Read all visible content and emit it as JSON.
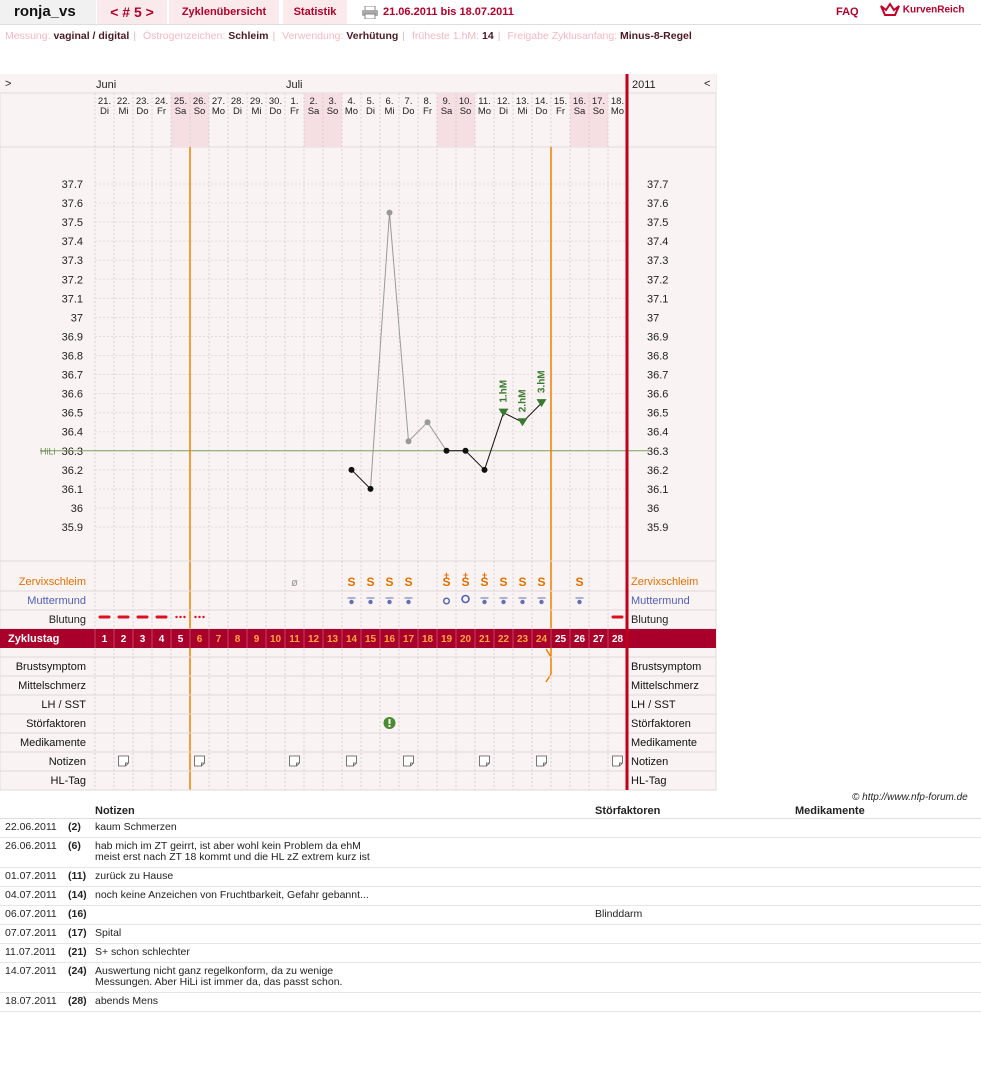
{
  "header": {
    "username": "ronja_vs",
    "cycle_label": "< # 5 >",
    "tabs": [
      {
        "label": "Zyklenübersicht"
      },
      {
        "label": "Statistik"
      }
    ],
    "date_range": "21.06.2011 bis 18.07.2011",
    "faq_label": "FAQ",
    "logo_text": "KurvenReich"
  },
  "info": [
    {
      "label": "Messung:",
      "value": "vaginal / digital"
    },
    {
      "label": "Östrogenzeichen:",
      "value": "Schleim"
    },
    {
      "label": "Verwendung:",
      "value": "Verhütung"
    },
    {
      "label": "früheste 1.hM:",
      "value": "14"
    },
    {
      "label": "Freigabe Zyklusanfang:",
      "value": "Minus-8-Regel"
    }
  ],
  "chart_data": {
    "type": "line",
    "nav_prev": ">",
    "nav_next": "<",
    "year_label": "2011",
    "month_labels": [
      {
        "day_index": 0,
        "label": "Juni"
      },
      {
        "day_index": 10,
        "label": "Juli"
      }
    ],
    "days": [
      {
        "date": "21.",
        "wd": "Di",
        "cd": "1",
        "weekend": false
      },
      {
        "date": "22.",
        "wd": "Mi",
        "cd": "2",
        "weekend": false
      },
      {
        "date": "23.",
        "wd": "Do",
        "cd": "3",
        "weekend": false
      },
      {
        "date": "24.",
        "wd": "Fr",
        "cd": "4",
        "weekend": false
      },
      {
        "date": "25.",
        "wd": "Sa",
        "cd": "5",
        "weekend": true
      },
      {
        "date": "26.",
        "wd": "So",
        "cd": "6",
        "weekend": true
      },
      {
        "date": "27.",
        "wd": "Mo",
        "cd": "7",
        "weekend": false
      },
      {
        "date": "28.",
        "wd": "Di",
        "cd": "8",
        "weekend": false
      },
      {
        "date": "29.",
        "wd": "Mi",
        "cd": "9",
        "weekend": false
      },
      {
        "date": "30.",
        "wd": "Do",
        "cd": "10",
        "weekend": false
      },
      {
        "date": "1.",
        "wd": "Fr",
        "cd": "11",
        "weekend": false
      },
      {
        "date": "2.",
        "wd": "Sa",
        "cd": "12",
        "weekend": true
      },
      {
        "date": "3.",
        "wd": "So",
        "cd": "13",
        "weekend": true
      },
      {
        "date": "4.",
        "wd": "Mo",
        "cd": "14",
        "weekend": false
      },
      {
        "date": "5.",
        "wd": "Di",
        "cd": "15",
        "weekend": false
      },
      {
        "date": "6.",
        "wd": "Mi",
        "cd": "16",
        "weekend": false
      },
      {
        "date": "7.",
        "wd": "Do",
        "cd": "17",
        "weekend": false
      },
      {
        "date": "8.",
        "wd": "Fr",
        "cd": "18",
        "weekend": false
      },
      {
        "date": "9.",
        "wd": "Sa",
        "cd": "19",
        "weekend": true
      },
      {
        "date": "10.",
        "wd": "So",
        "cd": "20",
        "weekend": true
      },
      {
        "date": "11.",
        "wd": "Mo",
        "cd": "21",
        "weekend": false
      },
      {
        "date": "12.",
        "wd": "Di",
        "cd": "22",
        "weekend": false
      },
      {
        "date": "13.",
        "wd": "Mi",
        "cd": "23",
        "weekend": false
      },
      {
        "date": "14.",
        "wd": "Do",
        "cd": "24",
        "weekend": false
      },
      {
        "date": "15.",
        "wd": "Fr",
        "cd": "25",
        "weekend": false
      },
      {
        "date": "16.",
        "wd": "Sa",
        "cd": "26",
        "weekend": true
      },
      {
        "date": "17.",
        "wd": "So",
        "cd": "27",
        "weekend": true
      },
      {
        "date": "18.",
        "wd": "Mo",
        "cd": "28",
        "weekend": false
      }
    ],
    "y_ticks": [
      "37.7",
      "37.6",
      "37.5",
      "37.4",
      "37.3",
      "37.2",
      "37.1",
      "37",
      "36.9",
      "36.8",
      "36.7",
      "36.6",
      "36.5",
      "36.4",
      "36.3",
      "36.2",
      "36.1",
      "36",
      "35.9"
    ],
    "ylim": [
      35.9,
      37.7
    ],
    "temperatures": [
      {
        "cd": 14,
        "value": 36.2,
        "state": "valid"
      },
      {
        "cd": 15,
        "value": 36.1,
        "state": "valid"
      },
      {
        "cd": 16,
        "value": 37.55,
        "state": "excluded"
      },
      {
        "cd": 17,
        "value": 36.35,
        "state": "excluded"
      },
      {
        "cd": 18,
        "value": 36.45,
        "state": "excluded"
      },
      {
        "cd": 19,
        "value": 36.3,
        "state": "valid"
      },
      {
        "cd": 20,
        "value": 36.3,
        "state": "valid"
      },
      {
        "cd": 21,
        "value": 36.2,
        "state": "valid"
      },
      {
        "cd": 22,
        "value": 36.5,
        "state": "high",
        "label": "1.hM"
      },
      {
        "cd": 23,
        "value": 36.45,
        "state": "high",
        "label": "2.hM"
      },
      {
        "cd": 24,
        "value": 36.55,
        "state": "high",
        "label": "3.hM"
      }
    ],
    "hili": {
      "label": "HiLi",
      "value": 36.3
    },
    "orange_marker_after_cd": 5,
    "evaluation_marker_after_cd": 24,
    "cycle_row_label": "Zyklustag",
    "rows_top": [
      {
        "label": "Zervixschleim",
        "color": "#e07000"
      },
      {
        "label": "Muttermund",
        "color": "#5060b0"
      },
      {
        "label": "Blutung",
        "color": "#222222"
      }
    ],
    "rows_bottom": [
      {
        "label": "Brustsymptom"
      },
      {
        "label": "Mittelschmerz"
      },
      {
        "label": "LH / SST"
      },
      {
        "label": "Störfaktoren"
      },
      {
        "label": "Medikamente"
      },
      {
        "label": "Notizen"
      },
      {
        "label": "HL-Tag"
      }
    ],
    "mucus": [
      {
        "cd": 11,
        "sym": "ø"
      },
      {
        "cd": 14,
        "sym": "S"
      },
      {
        "cd": 15,
        "sym": "S"
      },
      {
        "cd": 16,
        "sym": "S"
      },
      {
        "cd": 17,
        "sym": "S"
      },
      {
        "cd": 19,
        "sym": "S+"
      },
      {
        "cd": 20,
        "sym": "S+"
      },
      {
        "cd": 21,
        "sym": "S+"
      },
      {
        "cd": 22,
        "sym": "S"
      },
      {
        "cd": 23,
        "sym": "S"
      },
      {
        "cd": 24,
        "sym": "S"
      },
      {
        "cd": 26,
        "sym": "S"
      }
    ],
    "cervix_days": [
      14,
      15,
      16,
      17,
      19,
      20,
      21,
      22,
      23,
      24,
      26
    ],
    "bleeding": [
      {
        "cd": 1,
        "kind": "heavy"
      },
      {
        "cd": 2,
        "kind": "heavy"
      },
      {
        "cd": 3,
        "kind": "heavy"
      },
      {
        "cd": 4,
        "kind": "heavy"
      },
      {
        "cd": 5,
        "kind": "spot"
      },
      {
        "cd": 6,
        "kind": "spot"
      },
      {
        "cd": 28,
        "kind": "heavy"
      }
    ],
    "disturbance_days": [
      16
    ],
    "note_days": [
      2,
      6,
      11,
      14,
      17,
      21,
      24,
      28
    ]
  },
  "copyright": "© http://www.nfp-forum.de",
  "notes_table": {
    "headers": {
      "notes": "Notizen",
      "stoer": "Störfaktoren",
      "med": "Medikamente"
    },
    "rows": [
      {
        "date": "22.06.2011",
        "cd": "(2)",
        "text": "kaum Schmerzen",
        "stoer": "",
        "med": ""
      },
      {
        "date": "26.06.2011",
        "cd": "(6)",
        "text": "hab mich im ZT geirrt, ist aber wohl kein Problem da ehM meist erst nach ZT 18 kommt und die HL zZ extrem kurz ist",
        "stoer": "",
        "med": ""
      },
      {
        "date": "01.07.2011",
        "cd": "(11)",
        "text": "zurück zu Hause",
        "stoer": "",
        "med": ""
      },
      {
        "date": "04.07.2011",
        "cd": "(14)",
        "text": "noch keine Anzeichen von Fruchtbarkeit, Gefahr gebannt...",
        "stoer": "",
        "med": ""
      },
      {
        "date": "06.07.2011",
        "cd": "(16)",
        "text": "",
        "stoer": "Blinddarm",
        "med": ""
      },
      {
        "date": "07.07.2011",
        "cd": "(17)",
        "text": "Spital",
        "stoer": "",
        "med": ""
      },
      {
        "date": "11.07.2011",
        "cd": "(21)",
        "text": "S+ schon schlechter",
        "stoer": "",
        "med": ""
      },
      {
        "date": "14.07.2011",
        "cd": "(24)",
        "text": "Auswertung nicht ganz regelkonform, da zu wenige Messungen. Aber HiLi ist immer da, das passt schon.",
        "stoer": "",
        "med": ""
      },
      {
        "date": "18.07.2011",
        "cd": "(28)",
        "text": "abends Mens",
        "stoer": "",
        "med": ""
      }
    ]
  }
}
